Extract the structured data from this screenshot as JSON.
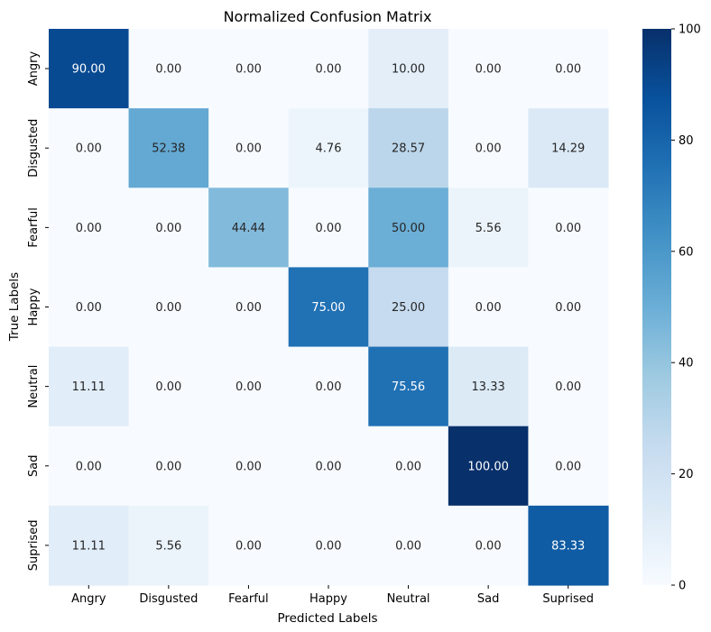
{
  "chart_data": {
    "type": "heatmap",
    "title": "Normalized Confusion Matrix",
    "xlabel": "Predicted Labels",
    "ylabel": "True Labels",
    "x_categories": [
      "Angry",
      "Disgusted",
      "Fearful",
      "Happy",
      "Neutral",
      "Sad",
      "Suprised"
    ],
    "y_categories": [
      "Angry",
      "Disgusted",
      "Fearful",
      "Happy",
      "Neutral",
      "Sad",
      "Suprised"
    ],
    "values": [
      [
        90.0,
        0.0,
        0.0,
        0.0,
        10.0,
        0.0,
        0.0
      ],
      [
        0.0,
        52.38,
        0.0,
        4.76,
        28.57,
        0.0,
        14.29
      ],
      [
        0.0,
        0.0,
        44.44,
        0.0,
        50.0,
        5.56,
        0.0
      ],
      [
        0.0,
        0.0,
        0.0,
        75.0,
        25.0,
        0.0,
        0.0
      ],
      [
        11.11,
        0.0,
        0.0,
        0.0,
        75.56,
        13.33,
        0.0
      ],
      [
        0.0,
        0.0,
        0.0,
        0.0,
        0.0,
        100.0,
        0.0
      ],
      [
        11.11,
        5.56,
        0.0,
        0.0,
        0.0,
        0.0,
        83.33
      ]
    ],
    "value_format": "0.00",
    "colormap": "Blues",
    "vmin": 0,
    "vmax": 100,
    "colorbar_ticks": [
      0,
      20,
      40,
      60,
      80,
      100
    ],
    "grid": false
  }
}
